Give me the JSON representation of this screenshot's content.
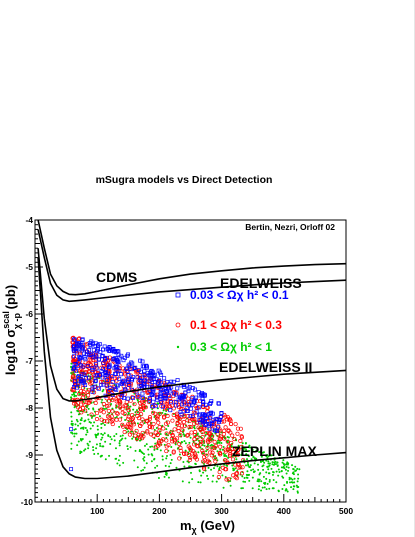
{
  "chart_data": {
    "type": "scatter",
    "title": "mSugra models vs Direct Detection",
    "credit": "Bertin, Nezri, Orloff 02",
    "xlabel": {
      "main": "m",
      "sub": "χ",
      "unit": " (GeV)"
    },
    "ylabel": {
      "pre": "log10 σ",
      "sup": "scal",
      "sub": "χ -p",
      "unit": " (pb)"
    },
    "xlim": [
      0,
      500
    ],
    "ylim": [
      -10,
      -4
    ],
    "x_ticks": [
      100,
      200,
      300,
      400,
      500
    ],
    "y_ticks": [
      -10,
      -9,
      -8,
      -7,
      -6,
      -5,
      -4
    ],
    "grid": false,
    "series": [
      {
        "name": "0.03 < Ωχ h² < 0.1",
        "marker": "square",
        "color": "#0000ff",
        "envelope": {
          "x": [
            62,
            100,
            150,
            200,
            250,
            300
          ],
          "upper": [
            -6.5,
            -6.6,
            -6.85,
            -7.2,
            -7.55,
            -7.9
          ],
          "lower": [
            -7.6,
            -7.7,
            -7.85,
            -8.0,
            -8.2,
            -8.6
          ]
        }
      },
      {
        "name": "0.1 < Ωχ h² < 0.3",
        "marker": "circle",
        "color": "#ff0000",
        "envelope": {
          "x": [
            60,
            100,
            150,
            200,
            250,
            300,
            335
          ],
          "upper": [
            -6.4,
            -6.8,
            -7.1,
            -7.4,
            -7.7,
            -8.1,
            -8.4
          ],
          "lower": [
            -8.0,
            -8.3,
            -8.6,
            -8.9,
            -9.2,
            -9.5,
            -9.6
          ]
        }
      },
      {
        "name": "0.3 < Ωχ h² < 1",
        "marker": "dot",
        "color": "#00cc00",
        "envelope": {
          "x": [
            58,
            100,
            150,
            200,
            250,
            300,
            350,
            400,
            425
          ],
          "upper": [
            -7.0,
            -7.3,
            -7.6,
            -7.9,
            -8.2,
            -8.5,
            -8.8,
            -9.1,
            -9.3
          ],
          "lower": [
            -8.9,
            -9.1,
            -9.3,
            -9.5,
            -9.6,
            -9.7,
            -9.75,
            -9.8,
            -9.85
          ]
        }
      }
    ],
    "outlier_points": [
      {
        "x": 58,
        "y": -8.45
      },
      {
        "x": 58,
        "y": -9.3
      }
    ],
    "curves": [
      {
        "name": "CDMS",
        "x": [
          5,
          15,
          25,
          35,
          45,
          55,
          65,
          80,
          100,
          150,
          200,
          250,
          300,
          350,
          400,
          450,
          500
        ],
        "y": [
          -4.0,
          -4.6,
          -5.15,
          -5.4,
          -5.52,
          -5.58,
          -5.59,
          -5.57,
          -5.52,
          -5.38,
          -5.25,
          -5.15,
          -5.08,
          -5.02,
          -4.98,
          -4.95,
          -4.93
        ]
      },
      {
        "name": "EDELWEISS",
        "x": [
          5,
          15,
          25,
          35,
          45,
          55,
          65,
          80,
          100,
          150,
          200,
          250,
          300,
          350,
          400,
          450,
          500
        ],
        "y": [
          -4.2,
          -4.8,
          -5.35,
          -5.6,
          -5.7,
          -5.73,
          -5.72,
          -5.7,
          -5.67,
          -5.6,
          -5.53,
          -5.48,
          -5.43,
          -5.38,
          -5.34,
          -5.31,
          -5.28
        ]
      },
      {
        "name": "EDELWEISS II",
        "x": [
          5,
          15,
          25,
          35,
          45,
          55,
          65,
          80,
          100,
          150,
          200,
          250,
          300,
          350,
          400,
          450,
          500
        ],
        "y": [
          -4.6,
          -6.1,
          -7.1,
          -7.6,
          -7.8,
          -7.85,
          -7.85,
          -7.82,
          -7.78,
          -7.65,
          -7.55,
          -7.47,
          -7.4,
          -7.34,
          -7.28,
          -7.24,
          -7.2
        ]
      },
      {
        "name": "ZEPLIN MAX",
        "x": [
          5,
          15,
          25,
          35,
          45,
          55,
          65,
          80,
          100,
          150,
          200,
          250,
          300,
          350,
          400,
          450,
          500
        ],
        "y": [
          -4.8,
          -6.8,
          -8.2,
          -8.9,
          -9.25,
          -9.4,
          -9.47,
          -9.5,
          -9.5,
          -9.45,
          -9.36,
          -9.27,
          -9.19,
          -9.12,
          -9.06,
          -9.0,
          -8.95
        ]
      }
    ],
    "curve_labels": [
      "CDMS",
      "EDELWEISS",
      "EDELWEISS II",
      "ZEPLIN MAX"
    ]
  }
}
